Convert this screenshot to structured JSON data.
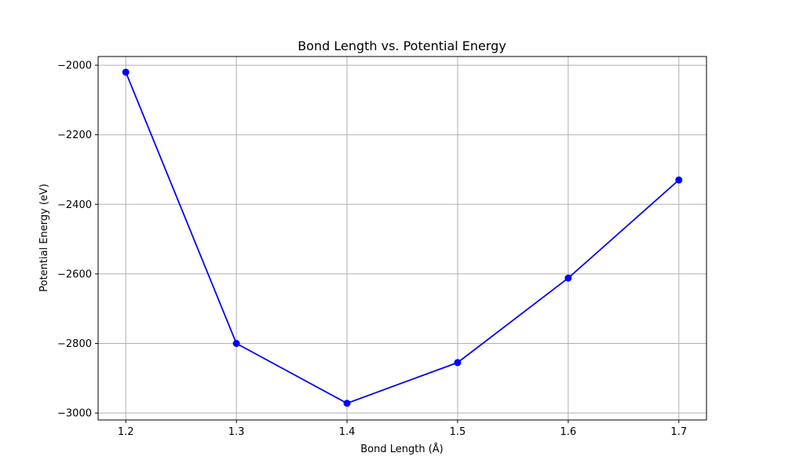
{
  "chart_data": {
    "type": "line",
    "title": "Bond Length vs. Potential Energy",
    "xlabel": "Bond Length (Å)",
    "ylabel": "Potential Energy (eV)",
    "x": [
      1.2,
      1.3,
      1.4,
      1.5,
      1.6,
      1.7
    ],
    "series": [
      {
        "values": [
          -2020,
          -2800,
          -2972,
          -2855,
          -2612,
          -2330
        ],
        "color": "#0000ff",
        "marker": "circle"
      }
    ],
    "xlim": [
      1.175,
      1.725
    ],
    "ylim": [
      -3020,
      -1975
    ],
    "xticks": [
      1.2,
      1.3,
      1.4,
      1.5,
      1.6,
      1.7
    ],
    "xtick_labels": [
      "1.2",
      "1.3",
      "1.4",
      "1.5",
      "1.6",
      "1.7"
    ],
    "yticks": [
      -3000,
      -2800,
      -2600,
      -2400,
      -2200,
      -2000
    ],
    "ytick_labels": [
      "−3000",
      "−2800",
      "−2600",
      "−2400",
      "−2200",
      "−2000"
    ],
    "grid": true,
    "grid_color": "#b0b0b0"
  }
}
